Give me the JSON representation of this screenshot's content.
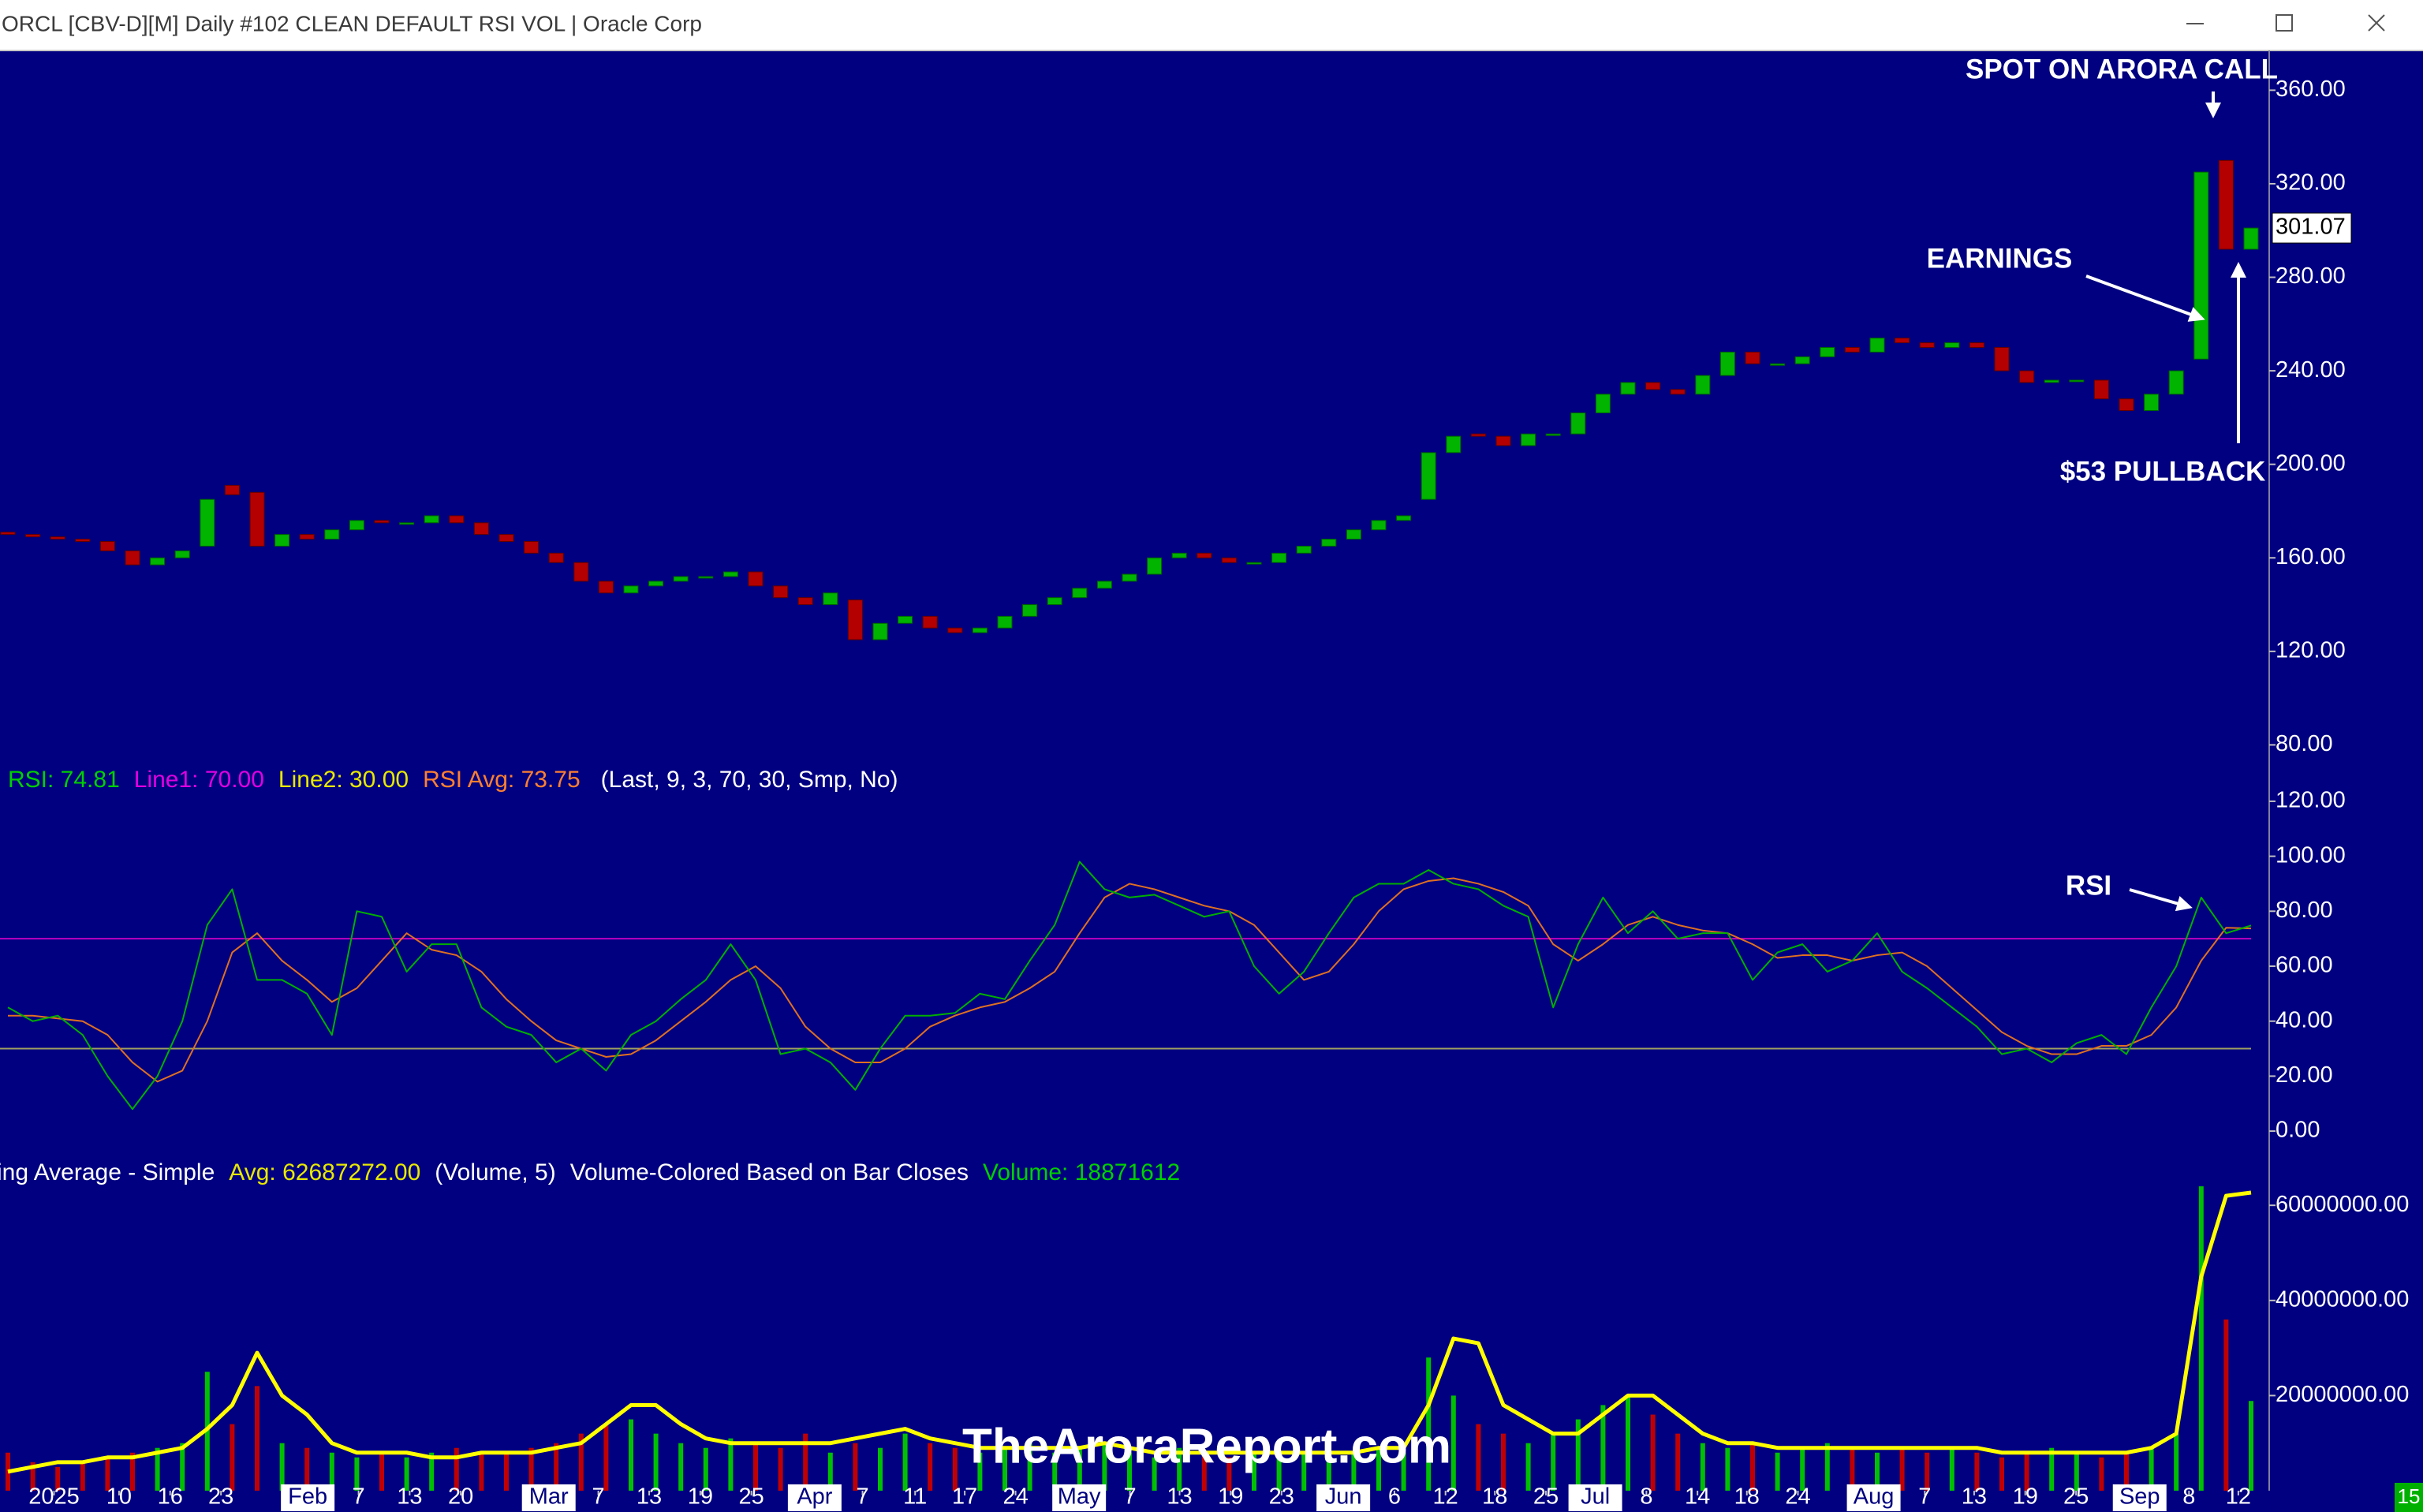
{
  "window_title": "ORCL [CBV-D][M]  Daily #102 CLEAN DEFAULT RSI VOL | Oracle Corp",
  "status_corner": "15",
  "chart_data": [
    {
      "type": "candlestick",
      "up_color": "#00b400",
      "down_color": "#b40000",
      "open": [
        171,
        170,
        169,
        168,
        167,
        163,
        157,
        160,
        165,
        191,
        188,
        165,
        170,
        168,
        172,
        176,
        175,
        175,
        178,
        175,
        170,
        167,
        162,
        158,
        150,
        145,
        148,
        150,
        152,
        152,
        154,
        148,
        143,
        140,
        142,
        125,
        132,
        135,
        130,
        128,
        130,
        135,
        140,
        143,
        147,
        150,
        153,
        160,
        162,
        160,
        158,
        158,
        162,
        165,
        168,
        172,
        176,
        185,
        205,
        213,
        212,
        208,
        213,
        213,
        222,
        230,
        235,
        232,
        230,
        238,
        248,
        243,
        243,
        246,
        250,
        248,
        254,
        252,
        250,
        252,
        250,
        240,
        235,
        236,
        236,
        228,
        223,
        230,
        245,
        330,
        292
      ],
      "close": [
        170,
        169,
        168,
        167,
        163,
        157,
        160,
        163,
        185,
        187,
        165,
        170,
        168,
        172,
        176,
        175,
        175,
        178,
        175,
        170,
        167,
        162,
        158,
        150,
        145,
        148,
        150,
        152,
        152,
        154,
        148,
        143,
        140,
        145,
        125,
        132,
        135,
        130,
        128,
        130,
        135,
        140,
        143,
        147,
        150,
        153,
        160,
        162,
        160,
        158,
        158,
        162,
        165,
        168,
        172,
        176,
        178,
        205,
        212,
        212,
        208,
        213,
        213,
        222,
        230,
        235,
        232,
        230,
        238,
        248,
        243,
        243,
        246,
        250,
        248,
        254,
        252,
        250,
        252,
        250,
        240,
        235,
        236,
        236,
        228,
        223,
        230,
        240,
        325,
        292,
        301.07
      ],
      "ylim": [
        68,
        377
      ],
      "yticks": [
        {
          "value": 80,
          "label": "80.00"
        },
        {
          "value": 120,
          "label": "120.00"
        },
        {
          "value": 160,
          "label": "160.00"
        },
        {
          "value": 200,
          "label": "200.00"
        },
        {
          "value": 240,
          "label": "240.00"
        },
        {
          "value": 280,
          "label": "280.00"
        },
        {
          "value": 320,
          "label": "320.00"
        },
        {
          "value": 360,
          "label": "360.00"
        }
      ],
      "annotations": [
        "SPOT ON ARORA CALL",
        "EARNINGS",
        "$53 PULLBACK"
      ]
    },
    {
      "type": "line",
      "header": [
        {
          "text": "RSI: 74.81",
          "color": "#00d000"
        },
        {
          "text": "Line1: 70.00",
          "color": "#e000e0"
        },
        {
          "text": "Line2: 30.00",
          "color": "#e8e800"
        },
        {
          "text": "RSI Avg: 73.75",
          "color": "#ff8030"
        },
        {
          "text": "(Last, 9, 3, 70, 30, Smp, No)",
          "color": "#ffffff"
        }
      ],
      "series": [
        {
          "name": "RSI",
          "color": "#00b000",
          "values": [
            45,
            40,
            42,
            35,
            20,
            8,
            20,
            40,
            75,
            88,
            55,
            55,
            50,
            35,
            80,
            78,
            58,
            68,
            68,
            45,
            38,
            35,
            25,
            30,
            22,
            35,
            40,
            48,
            55,
            68,
            55,
            28,
            30,
            25,
            15,
            30,
            42,
            42,
            43,
            50,
            48,
            62,
            75,
            98,
            88,
            85,
            86,
            82,
            78,
            80,
            60,
            50,
            58,
            72,
            85,
            90,
            90,
            95,
            90,
            88,
            82,
            78,
            45,
            68,
            85,
            72,
            80,
            70,
            72,
            72,
            55,
            65,
            68,
            58,
            62,
            72,
            58,
            52,
            45,
            38,
            28,
            30,
            25,
            32,
            35,
            28,
            45,
            60,
            85,
            72,
            74.81
          ]
        },
        {
          "name": "RSI Avg",
          "color": "#e07020",
          "values": [
            42,
            42,
            41,
            40,
            35,
            25,
            18,
            22,
            40,
            65,
            72,
            62,
            55,
            47,
            52,
            62,
            72,
            66,
            64,
            58,
            48,
            40,
            33,
            30,
            27,
            28,
            33,
            40,
            47,
            55,
            60,
            52,
            38,
            30,
            25,
            25,
            30,
            38,
            42,
            45,
            47,
            52,
            58,
            72,
            85,
            90,
            88,
            85,
            82,
            80,
            75,
            65,
            55,
            58,
            68,
            80,
            88,
            91,
            92,
            90,
            87,
            82,
            68,
            62,
            68,
            75,
            78,
            75,
            73,
            72,
            68,
            63,
            64,
            64,
            62,
            64,
            65,
            60,
            52,
            44,
            36,
            31,
            28,
            28,
            31,
            31,
            35,
            45,
            62,
            74,
            73.75
          ]
        }
      ],
      "line1": {
        "value": 70,
        "color": "#c000c0"
      },
      "line2": {
        "value": 30,
        "color": "#a0a060"
      },
      "ylim": [
        -6,
        126
      ],
      "yticks": [
        {
          "value": 0,
          "label": "0.00"
        },
        {
          "value": 20,
          "label": "20.00"
        },
        {
          "value": 40,
          "label": "40.00"
        },
        {
          "value": 60,
          "label": "60.00"
        },
        {
          "value": 80,
          "label": "80.00"
        },
        {
          "value": 100,
          "label": "100.00"
        },
        {
          "value": 120,
          "label": "120.00"
        }
      ],
      "annotations": [
        "RSI"
      ]
    },
    {
      "type": "bar",
      "header": [
        {
          "text": "ing Average - Simple",
          "color": "#ffffff"
        },
        {
          "text": "Avg: 62687272.00",
          "color": "#e8e800"
        },
        {
          "text": "(Volume, 5)",
          "color": "#ffffff"
        },
        {
          "text": "Volume-Colored Based on Bar Closes",
          "color": "#ffffff"
        },
        {
          "text": "Volume: 18871612",
          "color": "#00d000"
        }
      ],
      "values": [
        8000000,
        6000000,
        5000000,
        6000000,
        7000000,
        8000000,
        9000000,
        10000000,
        25000000,
        14000000,
        22000000,
        10000000,
        9000000,
        8000000,
        7000000,
        8000000,
        7000000,
        8000000,
        9000000,
        8000000,
        8000000,
        9000000,
        10000000,
        12000000,
        14000000,
        15000000,
        12000000,
        10000000,
        9000000,
        11000000,
        10000000,
        9000000,
        12000000,
        8000000,
        10000000,
        9000000,
        12000000,
        10000000,
        9000000,
        8000000,
        9000000,
        10000000,
        8000000,
        9000000,
        10000000,
        8000000,
        7000000,
        9000000,
        8000000,
        7000000,
        8000000,
        7000000,
        8000000,
        9000000,
        8000000,
        9000000,
        8000000,
        28000000,
        20000000,
        14000000,
        12000000,
        10000000,
        12000000,
        15000000,
        18000000,
        20000000,
        16000000,
        12000000,
        10000000,
        9000000,
        10000000,
        8000000,
        9000000,
        10000000,
        9000000,
        8000000,
        9000000,
        8000000,
        9000000,
        8000000,
        7000000,
        8000000,
        9000000,
        8000000,
        7000000,
        8000000,
        9000000,
        12000000,
        64000000,
        36000000,
        18871612
      ],
      "average": {
        "name": "Avg",
        "color": "#ffff00",
        "values": [
          4000000,
          5000000,
          6000000,
          6000000,
          7000000,
          7000000,
          8000000,
          9000000,
          13000000,
          18000000,
          29000000,
          20000000,
          16000000,
          10000000,
          8000000,
          8000000,
          8000000,
          7000000,
          7000000,
          8000000,
          8000000,
          8000000,
          9000000,
          10000000,
          14000000,
          18000000,
          18000000,
          14000000,
          11000000,
          10000000,
          10000000,
          10000000,
          10000000,
          10000000,
          11000000,
          12000000,
          13000000,
          11000000,
          10000000,
          9000000,
          9000000,
          9000000,
          9000000,
          9000000,
          10000000,
          9000000,
          8000000,
          8000000,
          8000000,
          8000000,
          8000000,
          8000000,
          8000000,
          8000000,
          8000000,
          9000000,
          9000000,
          18000000,
          32000000,
          31000000,
          18000000,
          15000000,
          12000000,
          12000000,
          16000000,
          20000000,
          20000000,
          16000000,
          12000000,
          10000000,
          10000000,
          9000000,
          9000000,
          9000000,
          9000000,
          9000000,
          9000000,
          9000000,
          9000000,
          9000000,
          8000000,
          8000000,
          8000000,
          8000000,
          8000000,
          8000000,
          9000000,
          12000000,
          45000000,
          62000000,
          62687272
        ]
      },
      "ylim": [
        0,
        66000000
      ],
      "yticks": [
        {
          "value": 20000000,
          "label": "20000000.00"
        },
        {
          "value": 40000000,
          "label": "40000000.00"
        },
        {
          "value": 60000000,
          "label": "60000000.00"
        }
      ],
      "xticks": [
        {
          "value": 1.85,
          "label": "2025"
        },
        {
          "value": 4.46,
          "label": "10"
        },
        {
          "value": 6.51,
          "label": "16"
        },
        {
          "value": 8.55,
          "label": "23"
        },
        {
          "value": 12.03,
          "label": "Feb"
        },
        {
          "value": 14.07,
          "label": "7"
        },
        {
          "value": 16.12,
          "label": "13"
        },
        {
          "value": 18.17,
          "label": "20"
        },
        {
          "value": 21.7,
          "label": "Mar"
        },
        {
          "value": 23.69,
          "label": "7"
        },
        {
          "value": 25.73,
          "label": "13"
        },
        {
          "value": 27.78,
          "label": "19"
        },
        {
          "value": 29.83,
          "label": "25"
        },
        {
          "value": 32.37,
          "label": "Apr"
        },
        {
          "value": 34.29,
          "label": "7"
        },
        {
          "value": 36.4,
          "label": "11"
        },
        {
          "value": 38.39,
          "label": "17"
        },
        {
          "value": 40.43,
          "label": "24"
        },
        {
          "value": 42.98,
          "label": "May"
        },
        {
          "value": 45.02,
          "label": "7"
        },
        {
          "value": 47.01,
          "label": "13"
        },
        {
          "value": 49.06,
          "label": "19"
        },
        {
          "value": 51.1,
          "label": "23"
        },
        {
          "value": 53.58,
          "label": "Jun"
        },
        {
          "value": 55.63,
          "label": "6"
        },
        {
          "value": 57.68,
          "label": "12"
        },
        {
          "value": 59.66,
          "label": "18"
        },
        {
          "value": 61.71,
          "label": "25"
        },
        {
          "value": 63.69,
          "label": "Jul"
        },
        {
          "value": 65.74,
          "label": "8"
        },
        {
          "value": 67.79,
          "label": "14"
        },
        {
          "value": 69.77,
          "label": "18"
        },
        {
          "value": 71.82,
          "label": "24"
        },
        {
          "value": 74.86,
          "label": "Aug"
        },
        {
          "value": 76.91,
          "label": "7"
        },
        {
          "value": 78.89,
          "label": "13"
        },
        {
          "value": 80.94,
          "label": "19"
        },
        {
          "value": 82.98,
          "label": "25"
        },
        {
          "value": 85.53,
          "label": "Sep"
        },
        {
          "value": 87.51,
          "label": "8"
        },
        {
          "value": 89.49,
          "label": "12"
        }
      ],
      "watermark": "TheAroraReport.com"
    }
  ]
}
